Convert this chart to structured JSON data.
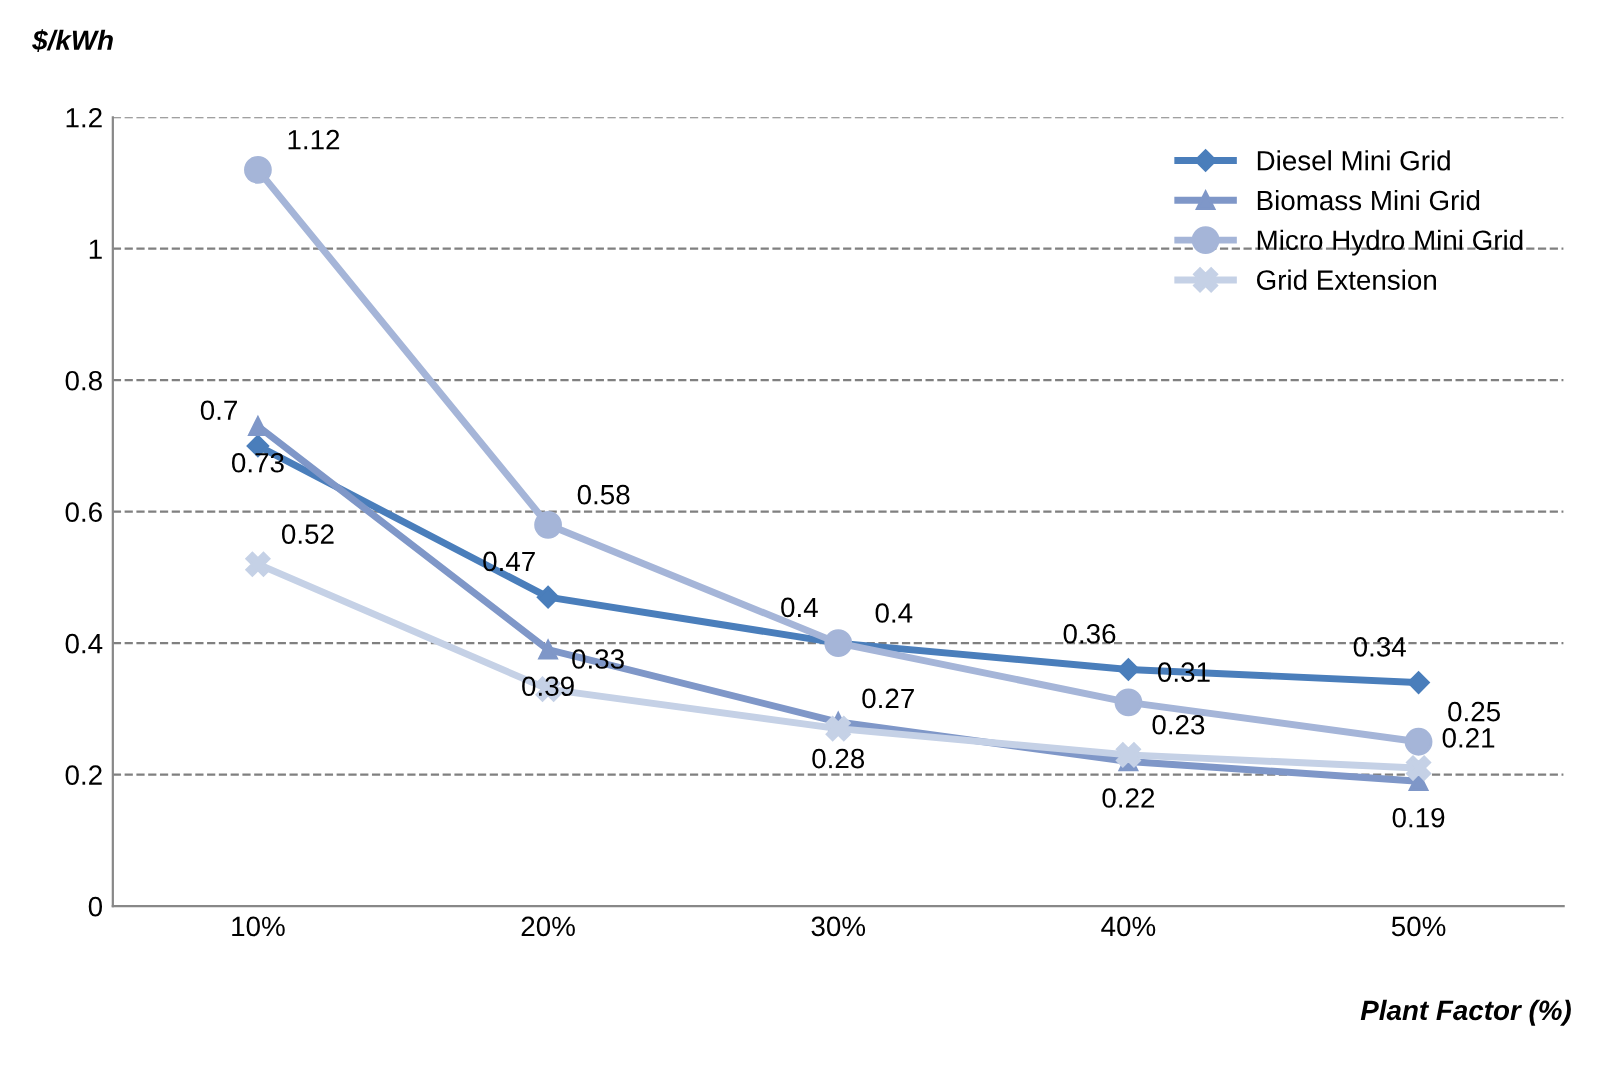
{
  "chart_data": {
    "type": "line",
    "xlabel": "Plant Factor (%)",
    "ylabel": "$/kWh",
    "categories": [
      "10%",
      "20%",
      "30%",
      "40%",
      "50%"
    ],
    "series": [
      {
        "name": "Diesel Mini Grid",
        "color": "#4a7ebb",
        "marker": "diamond",
        "values": [
          0.7,
          0.47,
          0.4,
          0.36,
          0.34
        ]
      },
      {
        "name": "Biomass Mini Grid",
        "color": "#7f97c8",
        "marker": "triangle",
        "values": [
          0.73,
          0.39,
          0.28,
          0.22,
          0.19
        ]
      },
      {
        "name": "Micro Hydro Mini Grid",
        "color": "#a5b5d8",
        "marker": "circle",
        "values": [
          1.12,
          0.58,
          0.4,
          0.31,
          0.25
        ]
      },
      {
        "name": "Grid Extension",
        "color": "#c5d1e6",
        "marker": "cross",
        "values": [
          0.52,
          0.33,
          0.27,
          0.23,
          0.21
        ]
      }
    ],
    "ylim": [
      0,
      1.2
    ],
    "yticks": [
      0,
      0.2,
      0.4,
      0.6,
      0.8,
      1,
      1.2
    ],
    "grid": "y",
    "legend": "top right",
    "data_labels": true,
    "line_style": "solid"
  }
}
